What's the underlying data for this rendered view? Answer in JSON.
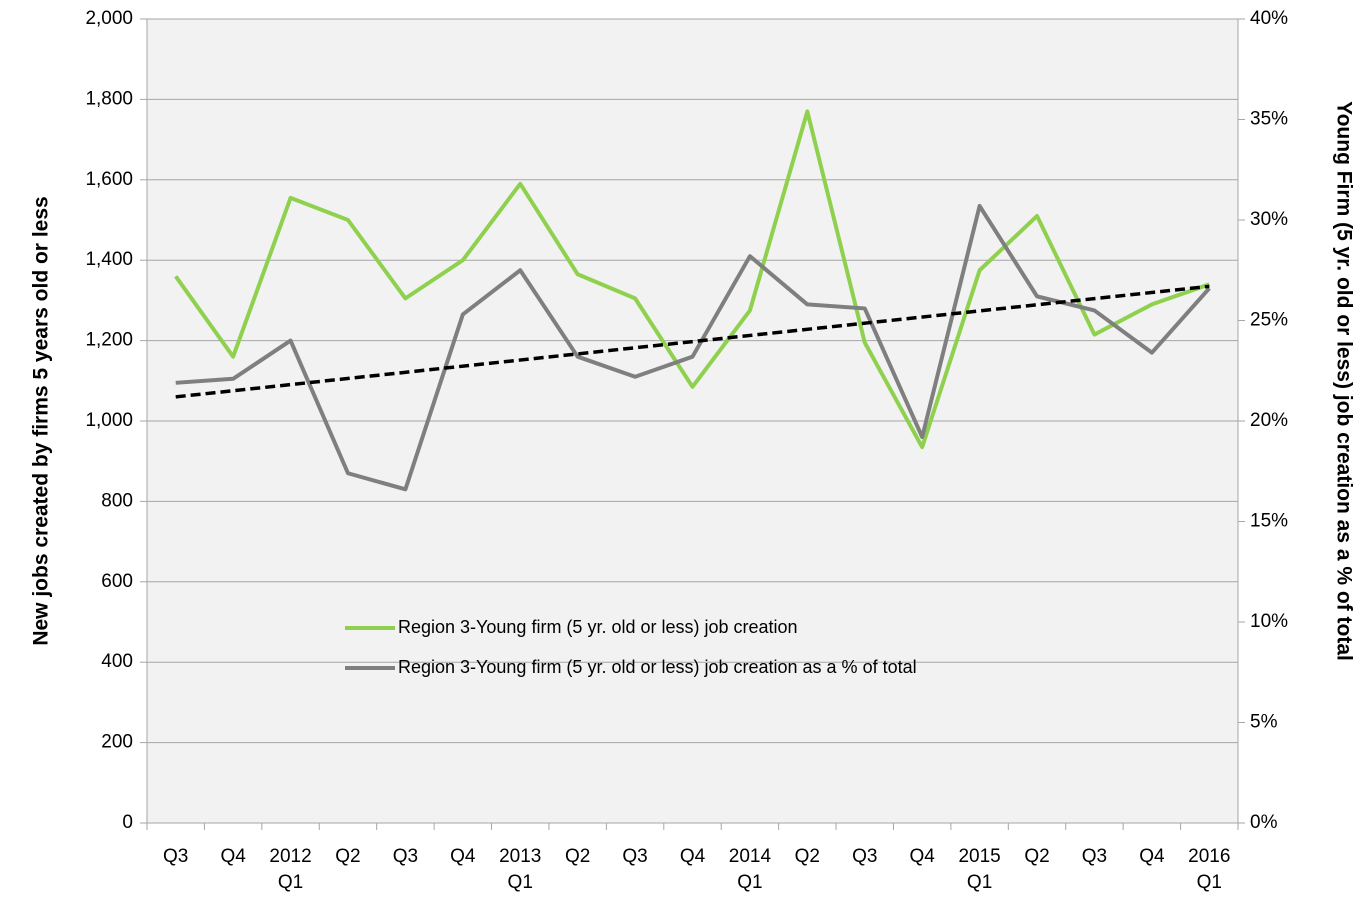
{
  "chart_data": {
    "type": "line",
    "categories": [
      "Q3",
      "Q4",
      "2012 Q1",
      "Q2",
      "Q3",
      "Q4",
      "2013 Q1",
      "Q2",
      "Q3",
      "Q4",
      "2014 Q1",
      "Q2",
      "Q3",
      "Q4",
      "2015 Q1",
      "Q2",
      "Q3",
      "Q4",
      "2016 Q1"
    ],
    "series": [
      {
        "name": "Region 3-Young firm (5 yr. old or less) job creation",
        "color": "#8fd14f",
        "values": [
          1360,
          1160,
          1555,
          1500,
          1305,
          1400,
          1590,
          1365,
          1305,
          1085,
          1275,
          1770,
          1195,
          935,
          1375,
          1510,
          1215,
          1290,
          1340
        ]
      },
      {
        "name": "Region 3-Young firm (5 yr. old or less) job creation as a % of total",
        "color": "#7f7f7f",
        "axis": "y2",
        "values": [
          21.9,
          22.1,
          24.0,
          17.4,
          16.6,
          25.3,
          27.5,
          23.2,
          22.2,
          23.2,
          28.2,
          25.8,
          25.6,
          19.2,
          30.7,
          26.2,
          25.5,
          23.4,
          26.6
        ]
      }
    ],
    "trendline": {
      "axis": "y2",
      "color": "#000000",
      "values": [
        21.2,
        26.7
      ]
    },
    "ylabel": "New jobs created by firms 5 years old or less",
    "y2label": "Young Firm (5 yr. old or less) job creation as a % of total",
    "ylim": [
      0,
      2000
    ],
    "yticks": [
      0,
      200,
      400,
      600,
      800,
      {
        "value": 1000,
        "label": "1,000"
      },
      {
        "value": 1200,
        "label": "1,200"
      },
      {
        "value": 1400,
        "label": "1,400"
      },
      {
        "value": 1600,
        "label": "1,600"
      },
      {
        "value": 1800,
        "label": "1,800"
      },
      {
        "value": 2000,
        "label": "2,000"
      }
    ],
    "y2lim": [
      0,
      40
    ],
    "y2ticks": [
      {
        "value": 0,
        "label": "0%"
      },
      {
        "value": 5,
        "label": "5%"
      },
      {
        "value": 10,
        "label": "10%"
      },
      {
        "value": 15,
        "label": "15%"
      },
      {
        "value": 20,
        "label": "20%"
      },
      {
        "value": 25,
        "label": "25%"
      },
      {
        "value": 30,
        "label": "30%"
      },
      {
        "value": 35,
        "label": "35%"
      },
      {
        "value": 40,
        "label": "40%"
      }
    ],
    "grid": true
  }
}
